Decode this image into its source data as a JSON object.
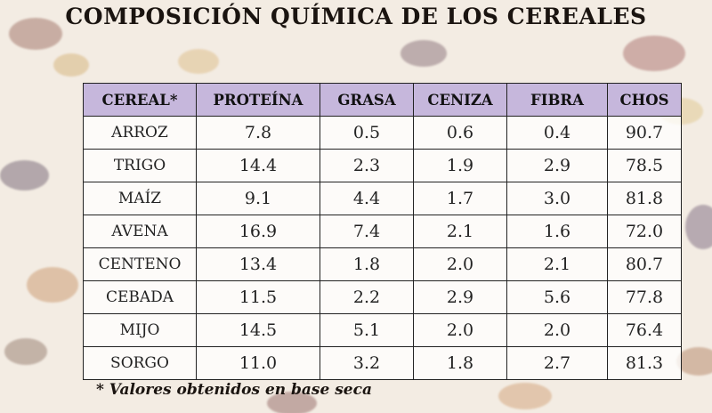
{
  "title": "COMPOSICIÓN QUÍMICA DE LOS CEREALES",
  "footnote": "* Valores obtenidos en base seca",
  "chart_data": {
    "type": "table",
    "columns": [
      "CEREAL*",
      "PROTEÍNA",
      "GRASA",
      "CENIZA",
      "FIBRA",
      "CHOS"
    ],
    "rows": [
      [
        "ARROZ",
        "7.8",
        "0.5",
        "0.6",
        "0.4",
        "90.7"
      ],
      [
        "TRIGO",
        "14.4",
        "2.3",
        "1.9",
        "2.9",
        "78.5"
      ],
      [
        "MAÍZ",
        "9.1",
        "4.4",
        "1.7",
        "3.0",
        "81.8"
      ],
      [
        "AVENA",
        "16.9",
        "7.4",
        "2.1",
        "1.6",
        "72.0"
      ],
      [
        "CENTENO",
        "13.4",
        "1.8",
        "2.0",
        "2.1",
        "80.7"
      ],
      [
        "CEBADA",
        "11.5",
        "2.2",
        "2.9",
        "5.6",
        "77.8"
      ],
      [
        "MIJO",
        "14.5",
        "5.1",
        "2.0",
        "2.0",
        "76.4"
      ],
      [
        "SORGO",
        "11.0",
        "3.2",
        "1.8",
        "2.7",
        "81.3"
      ]
    ]
  },
  "colors": {
    "header_bg": "#c6b7dc",
    "cell_bg": "#ffffff",
    "border": "#222222"
  }
}
